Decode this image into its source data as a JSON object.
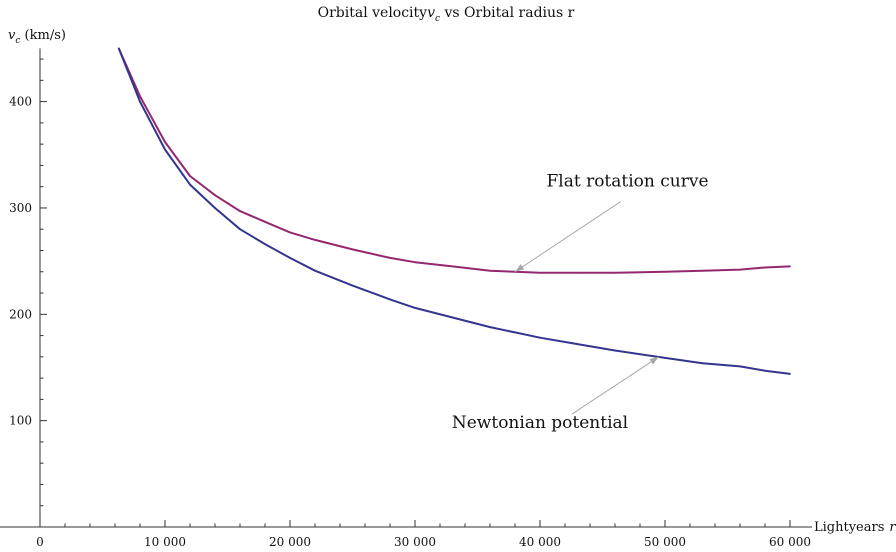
{
  "chart_data": {
    "type": "line",
    "title": "Orbital velocity",
    "title_symbol": "v",
    "title_subscript": "c",
    "title_rest": " vs Orbital radius r",
    "ylabel_symbol": "v",
    "ylabel_subscript": "c",
    "ylabel_unit": " (km/s)",
    "xlabel": "Lightyears",
    "xlabel_symbol": "r",
    "xlim": [
      0,
      60000
    ],
    "ylim": [
      0,
      450
    ],
    "xticks": [
      0,
      10000,
      20000,
      30000,
      40000,
      50000,
      60000
    ],
    "xtick_labels": [
      "0",
      "10 000",
      "20 000",
      "30 000",
      "40 000",
      "50 000",
      "60 000"
    ],
    "yticks": [
      100,
      200,
      300,
      400
    ],
    "ytick_labels": [
      "100",
      "200",
      "300",
      "400"
    ],
    "grid": false,
    "series": [
      {
        "name": "Flat rotation curve",
        "color": "#93286f",
        "x": [
          6300,
          8000,
          10000,
          12000,
          14000,
          16000,
          18000,
          20000,
          22000,
          25000,
          28000,
          30000,
          33000,
          36000,
          38000,
          40000,
          43000,
          46000,
          50000,
          53000,
          56000,
          58000,
          60000
        ],
        "y": [
          450,
          405,
          362,
          330,
          312,
          297,
          287,
          277,
          270,
          261,
          253,
          249,
          245,
          241,
          240,
          239,
          239,
          239,
          240,
          241,
          242,
          244,
          245
        ]
      },
      {
        "name": "Newtonian potential",
        "color": "#34358f",
        "x": [
          6300,
          8000,
          10000,
          12000,
          14000,
          16000,
          18000,
          20000,
          22000,
          25000,
          28000,
          30000,
          33000,
          36000,
          38000,
          40000,
          43000,
          46000,
          50000,
          53000,
          56000,
          58000,
          60000
        ],
        "y": [
          450,
          400,
          355,
          322,
          300,
          280,
          266,
          253,
          241,
          227,
          214,
          206,
          197,
          188,
          183,
          178,
          172,
          166,
          159,
          154,
          151,
          147,
          144
        ]
      }
    ],
    "annotations": [
      {
        "text": "Flat rotation curve",
        "tx": 47000,
        "ty": 320,
        "ax": 38000,
        "ay": 240
      },
      {
        "text": "Newtonian potential",
        "tx": 40000,
        "ty": 93,
        "ax": 49500,
        "ay": 160
      }
    ]
  }
}
